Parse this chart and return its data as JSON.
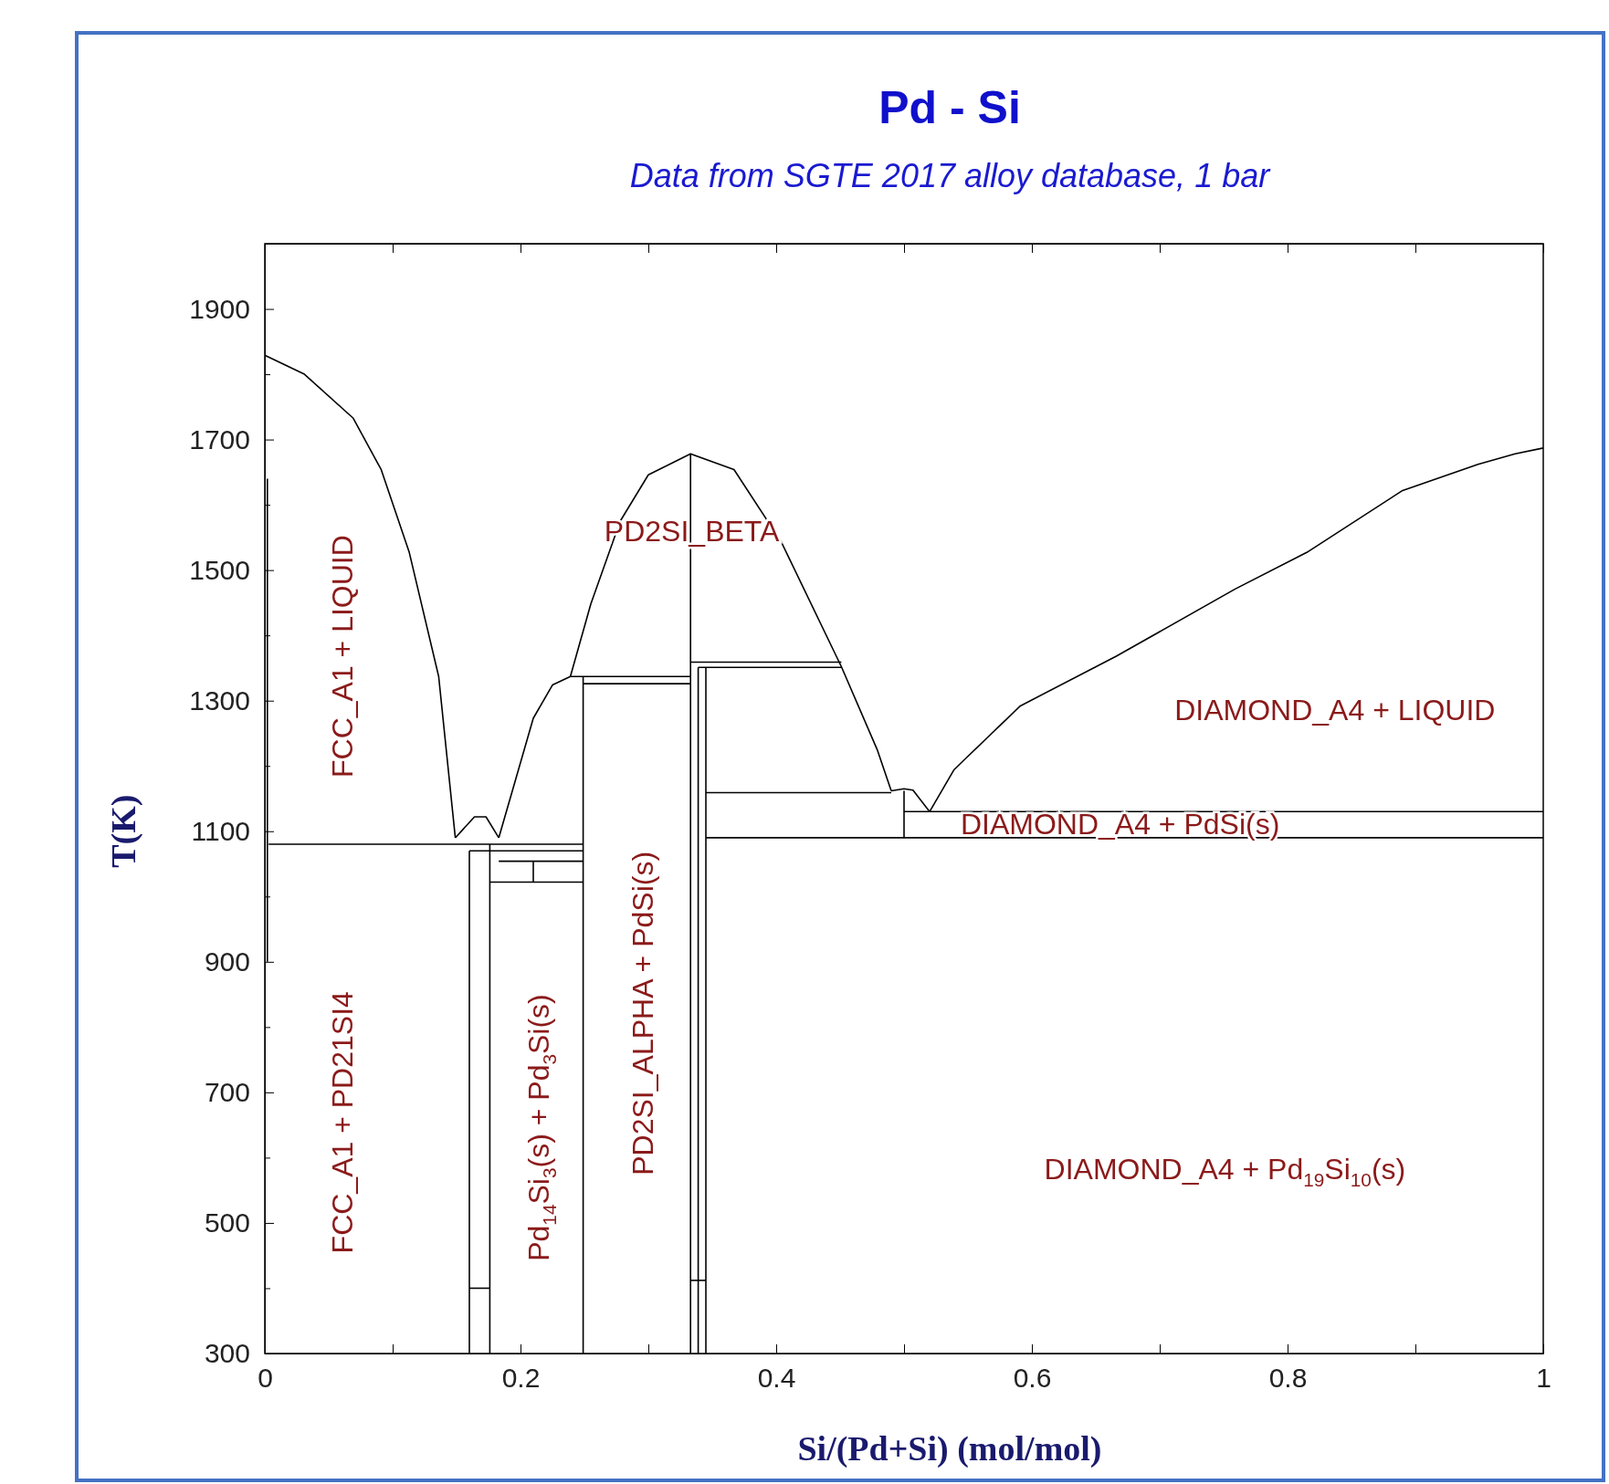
{
  "chart_data": {
    "type": "line",
    "title": "Pd - Si",
    "subtitle": "Data from SGTE 2017 alloy database, 1 bar",
    "xlabel": "Si/(Pd+Si) (mol/mol)",
    "ylabel": "T(K)",
    "xlim": [
      0,
      1
    ],
    "ylim": [
      300,
      2000
    ],
    "xticks": [
      0,
      {
        "value": 0.1,
        "label": null
      },
      0.2,
      {
        "value": 0.3,
        "label": null
      },
      0.4,
      {
        "value": 0.5,
        "label": null
      },
      0.6,
      {
        "value": 0.7,
        "label": null
      },
      0.8,
      {
        "value": 0.9,
        "label": null
      },
      1
    ],
    "yticks": [
      {
        "value": 300,
        "label": "300"
      },
      {
        "value": 400,
        "label": null
      },
      500,
      {
        "value": 600,
        "label": null
      },
      700,
      {
        "value": 800,
        "label": null
      },
      900,
      {
        "value": 1000,
        "label": null
      },
      1100,
      {
        "value": 1200,
        "label": null
      },
      1300,
      {
        "value": 1400,
        "label": null
      },
      1500,
      {
        "value": 1600,
        "label": null
      },
      1700,
      {
        "value": 1800,
        "label": null
      },
      1900
    ],
    "marker": "none",
    "line_style": "solid",
    "grid": false,
    "series": [
      {
        "color": "#000000",
        "x": [
          0,
          0.031,
          0.069,
          0.091,
          0.113,
          0.136,
          0.149
        ],
        "values": [
          1829,
          1800,
          1733,
          1654,
          1527,
          1337,
          1090
        ]
      },
      {
        "color": "#000000",
        "x": [
          0.003,
          0.249
        ],
        "values": [
          1080,
          1080
        ]
      },
      {
        "color": "#000000",
        "x": [
          0.149,
          0.164,
          0.173,
          0.183
        ],
        "values": [
          1090,
          1122,
          1122,
          1090
        ]
      },
      {
        "color": "#000000",
        "x": [
          0.183,
          0.196,
          0.21,
          0.225,
          0.239,
          0.333
        ],
        "values": [
          1090,
          1178,
          1273,
          1324,
          1337,
          1337
        ]
      },
      {
        "color": "#000000",
        "x": [
          0.249,
          0.333
        ],
        "values": [
          1326,
          1326
        ]
      },
      {
        "color": "#000000",
        "x": [
          0.239,
          0.255,
          0.278,
          0.3,
          0.333,
          0.367,
          0.404,
          0.451,
          0.479,
          0.49
        ],
        "values": [
          1337,
          1448,
          1575,
          1646,
          1678,
          1654,
          1543,
          1352,
          1225,
          1162
        ]
      },
      {
        "color": "#000000",
        "x": [
          0.333,
          0.333
        ],
        "values": [
          1678,
          300
        ]
      },
      {
        "color": "#000000",
        "x": [
          0.333,
          0.451
        ],
        "values": [
          1359,
          1359
        ]
      },
      {
        "color": "#000000",
        "x": [
          0.339,
          0.451
        ],
        "values": [
          1351,
          1351
        ]
      },
      {
        "color": "#000000",
        "x": [
          0.339,
          0.339
        ],
        "values": [
          1351,
          300
        ]
      },
      {
        "color": "#000000",
        "x": [
          0.345,
          0.345
        ],
        "values": [
          1351,
          300
        ]
      },
      {
        "color": "#000000",
        "x": [
          0.345,
          0.49
        ],
        "values": [
          1159,
          1159
        ]
      },
      {
        "color": "#000000",
        "x": [
          0.5,
          0.5
        ],
        "values": [
          1162,
          1090
        ]
      },
      {
        "color": "#000000",
        "x": [
          0.5,
          1
        ],
        "values": [
          1130,
          1130
        ]
      },
      {
        "color": "#000000",
        "x": [
          0.345,
          1
        ],
        "values": [
          1090,
          1090
        ]
      },
      {
        "color": "#000000",
        "x": [
          0.49,
          0.5,
          0.507,
          0.52
        ],
        "values": [
          1162,
          1165,
          1163,
          1130
        ]
      },
      {
        "color": "#000000",
        "x": [
          0.52,
          0.539,
          0.591,
          0.666,
          0.759,
          0.815,
          0.89,
          0.949,
          0.978,
          1
        ],
        "values": [
          1130,
          1194,
          1292,
          1368,
          1471,
          1527,
          1622,
          1662,
          1678,
          1687
        ]
      },
      {
        "color": "#000000",
        "x": [
          0.16,
          0.16
        ],
        "values": [
          1070,
          300
        ]
      },
      {
        "color": "#000000",
        "x": [
          0.176,
          0.176
        ],
        "values": [
          1080,
          300
        ]
      },
      {
        "color": "#000000",
        "x": [
          0.249,
          0.249
        ],
        "values": [
          1337,
          300
        ]
      },
      {
        "color": "#000000",
        "x": [
          0.16,
          0.176
        ],
        "values": [
          400,
          400
        ]
      },
      {
        "color": "#000000",
        "x": [
          0.333,
          0.345
        ],
        "values": [
          412,
          412
        ]
      },
      {
        "color": "#000000",
        "x": [
          0.16,
          0.249
        ],
        "values": [
          1070,
          1070
        ]
      },
      {
        "color": "#000000",
        "x": [
          0.183,
          0.249
        ],
        "values": [
          1054,
          1054
        ]
      },
      {
        "color": "#000000",
        "x": [
          0.176,
          0.249
        ],
        "values": [
          1022,
          1022
        ]
      },
      {
        "color": "#000000",
        "x": [
          0.21,
          0.21
        ],
        "values": [
          1054,
          1022
        ]
      },
      {
        "color": "#000000",
        "x": [
          0.002,
          0.002
        ],
        "values": [
          1640,
          900
        ]
      }
    ],
    "annotations": [
      "FCC_A1 + LIQUID",
      "FCC_A1 + PD21SI4",
      "Pd$_{14}$Si$_{3}$(s) + Pd$_{3}$Si(s)",
      "PD2SI_ALPHA + PdSi(s)",
      "PD2SI_BETA",
      "DIAMOND_A4 + LIQUID",
      "DIAMOND_A4 + PdSi(s)",
      "DIAMOND_A4 + Pd$_{19}$Si$_{10}$(s)"
    ]
  }
}
